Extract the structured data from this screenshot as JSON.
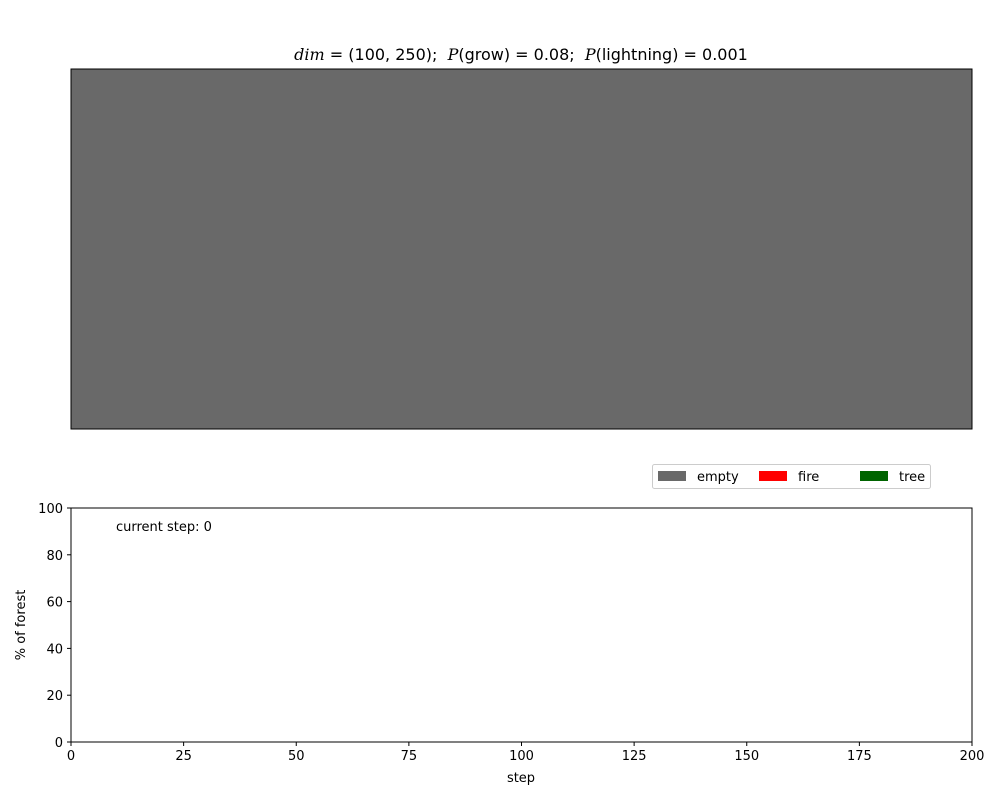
{
  "chart_data": [
    {
      "type": "heatmap",
      "title_parts": {
        "dim_var": "dim",
        "dim_val": " = (100, 250);  ",
        "p1_var": "P",
        "p1_rest": "(grow) = 0.08;  ",
        "p2_var": "P",
        "p2_rest": "(lightning) = 0.001"
      },
      "grid_shape": [
        100,
        250
      ],
      "state": "all empty",
      "legend": [
        {
          "label": "empty",
          "color": "#696969"
        },
        {
          "label": "fire",
          "color": "#ff0000"
        },
        {
          "label": "tree",
          "color": "#006400"
        }
      ],
      "legend_position": "top-right",
      "colors": {
        "empty": "#696969",
        "fire": "#ff0000",
        "tree": "#006400"
      }
    },
    {
      "type": "line",
      "xlabel": "step",
      "ylabel": "% of forest",
      "xlim": [
        0,
        200
      ],
      "ylim": [
        0,
        100
      ],
      "xticks": [
        0,
        25,
        50,
        75,
        100,
        125,
        150,
        175,
        200
      ],
      "yticks": [
        0,
        20,
        40,
        60,
        80,
        100
      ],
      "series": [],
      "annotation": "current step: 0"
    }
  ]
}
